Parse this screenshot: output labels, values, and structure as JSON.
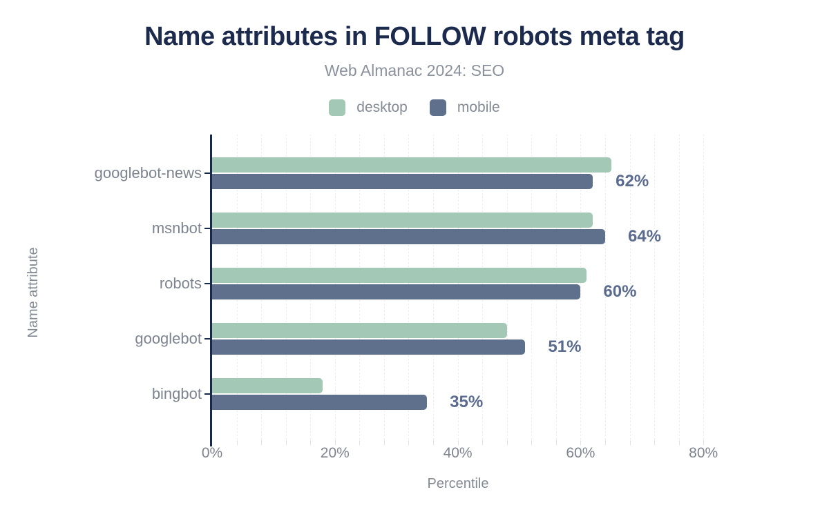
{
  "title": "Name attributes in FOLLOW robots meta tag",
  "subtitle": "Web Almanac 2024: SEO",
  "legend": [
    {
      "label": "desktop",
      "color": "#a4c8b6"
    },
    {
      "label": "mobile",
      "color": "#5f708c"
    }
  ],
  "colors": {
    "desktop_bar": "#a4c8b6",
    "mobile_bar": "#5f708c",
    "title_text": "#1c2b4d",
    "axis_line": "#16294b",
    "value_label": "#5a6b8f",
    "muted_text": "#848a94"
  },
  "chart_data": {
    "type": "bar",
    "orientation": "horizontal",
    "title": "Name attributes in FOLLOW robots meta tag",
    "subtitle": "Web Almanac 2024: SEO",
    "categories": [
      "googlebot-news",
      "msnbot",
      "robots",
      "googlebot",
      "bingbot"
    ],
    "series": [
      {
        "name": "desktop",
        "color": "#a4c8b6",
        "values": [
          65,
          62,
          61,
          48,
          18
        ]
      },
      {
        "name": "mobile",
        "color": "#5f708c",
        "values": [
          62,
          64,
          60,
          51,
          35
        ]
      }
    ],
    "value_labels": [
      "62%",
      "64%",
      "60%",
      "51%",
      "35%"
    ],
    "value_labels_series": "mobile",
    "xlabel": "Percentile",
    "ylabel": "Name attribute",
    "x_ticks": [
      "0%",
      "20%",
      "40%",
      "60%",
      "80%"
    ],
    "x_tick_values": [
      0,
      20,
      40,
      60,
      80
    ],
    "xlim": [
      0,
      80
    ],
    "grid": "minor vertical dotted every 4%",
    "legend_position": "top-center"
  }
}
